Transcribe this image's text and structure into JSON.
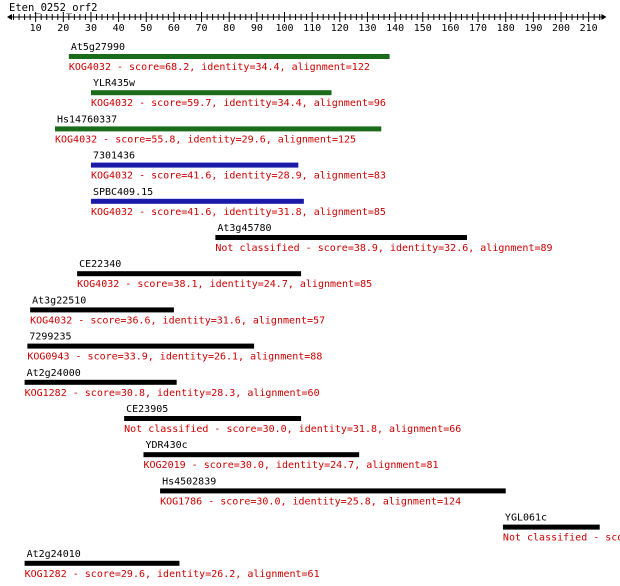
{
  "query": {
    "name": "Eten_0252_orf2",
    "axis_min": 0,
    "axis_max": 215,
    "tick_labels": [
      10,
      20,
      30,
      40,
      50,
      60,
      70,
      80,
      90,
      100,
      110,
      120,
      130,
      140,
      150,
      160,
      170,
      180,
      190,
      200,
      210
    ]
  },
  "colors": {
    "text": "#000000",
    "annotation": "#cc0000",
    "green": "#1a6b1a",
    "blue": "#1a1aaa",
    "black": "#000000"
  },
  "hits": [
    {
      "name": "At5g27990",
      "start": 22,
      "end": 138,
      "color": "green",
      "annotation": "KOG4032 - score=68.2, identity=34.4, alignment=122"
    },
    {
      "name": "YLR435w",
      "start": 30,
      "end": 117,
      "color": "green",
      "annotation": "KOG4032 - score=59.7, identity=34.4, alignment=96"
    },
    {
      "name": "Hs14760337",
      "start": 17,
      "end": 135,
      "color": "green",
      "annotation": "KOG4032 - score=55.8, identity=29.6, alignment=125"
    },
    {
      "name": "7301436",
      "start": 30,
      "end": 105,
      "color": "blue",
      "annotation": "KOG4032 - score=41.6, identity=28.9, alignment=83"
    },
    {
      "name": "SPBC409.15",
      "start": 30,
      "end": 107,
      "color": "blue",
      "annotation": "KOG4032 - score=41.6, identity=31.8, alignment=85"
    },
    {
      "name": "At3g45780",
      "start": 75,
      "end": 166,
      "color": "black",
      "annotation": "Not classified - score=38.9, identity=32.6, alignment=89"
    },
    {
      "name": "CE22340",
      "start": 25,
      "end": 106,
      "color": "black",
      "annotation": "KOG4032 - score=38.1, identity=24.7, alignment=85"
    },
    {
      "name": "At3g22510",
      "start": 8,
      "end": 60,
      "color": "black",
      "annotation": "KOG4032 - score=36.6, identity=31.6, alignment=57"
    },
    {
      "name": "7299235",
      "start": 7,
      "end": 89,
      "color": "black",
      "annotation": "KOG0943 - score=33.9, identity=26.1, alignment=88"
    },
    {
      "name": "At2g24000",
      "start": 6,
      "end": 61,
      "color": "black",
      "annotation": "KOG1282 - score=30.8, identity=28.3, alignment=60"
    },
    {
      "name": "CE23905",
      "start": 42,
      "end": 106,
      "color": "black",
      "annotation": "Not classified - score=30.0, identity=31.8, alignment=66"
    },
    {
      "name": "YDR430c",
      "start": 49,
      "end": 127,
      "color": "black",
      "annotation": "KOG2019 - score=30.0, identity=24.7, alignment=81"
    },
    {
      "name": "Hs4502839",
      "start": 55,
      "end": 180,
      "color": "black",
      "annotation": "KOG1786 - score=30.0, identity=25.8, alignment=124"
    },
    {
      "name": "YGL061c",
      "start": 179,
      "end": 214,
      "color": "black",
      "annotation": "Not classified - score="
    },
    {
      "name": "At2g24010",
      "start": 6,
      "end": 62,
      "color": "black",
      "annotation": "KOG1282 - score=29.6, identity=26.2, alignment=61"
    }
  ]
}
